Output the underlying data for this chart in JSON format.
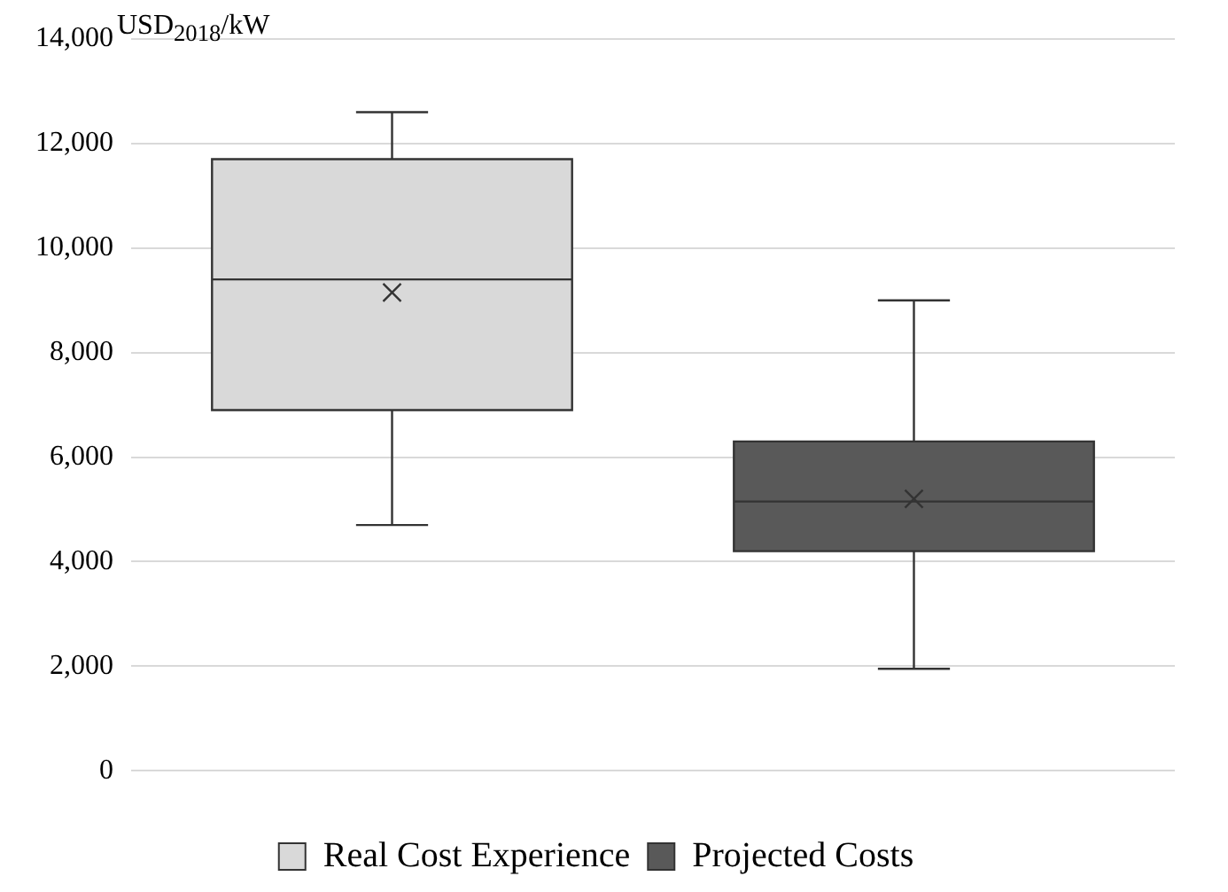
{
  "chart_data": {
    "type": "box",
    "ylabel": "USD$_{2018}$/kW",
    "categories": [
      null,
      null
    ],
    "series": [
      {
        "name": "Real Cost Experience",
        "color": "#d9d9d9",
        "boxes": [
          {
            "low": 4700,
            "q1": 6900,
            "median": 9400,
            "q3": 11700,
            "high": 12600,
            "mean": 9150
          },
          null
        ]
      },
      {
        "name": "Projected Costs",
        "color": "#595959",
        "boxes": [
          null,
          {
            "low": 1950,
            "q1": 4200,
            "median": 5150,
            "q3": 6300,
            "high": 9000,
            "mean": 5200
          }
        ]
      }
    ],
    "ylim": [
      0,
      14000
    ],
    "yticks": [
      0,
      {
        "value": 2000,
        "label": "2,000"
      },
      {
        "value": 4000,
        "label": "4,000"
      },
      {
        "value": 6000,
        "label": "6,000"
      },
      {
        "value": 8000,
        "label": "8,000"
      },
      {
        "value": 10000,
        "label": "10,000"
      },
      {
        "value": 12000,
        "label": "12,000"
      },
      {
        "value": 14000,
        "label": "14,000"
      }
    ],
    "grid": "y",
    "legend": "bottom",
    "marker": "cross"
  }
}
